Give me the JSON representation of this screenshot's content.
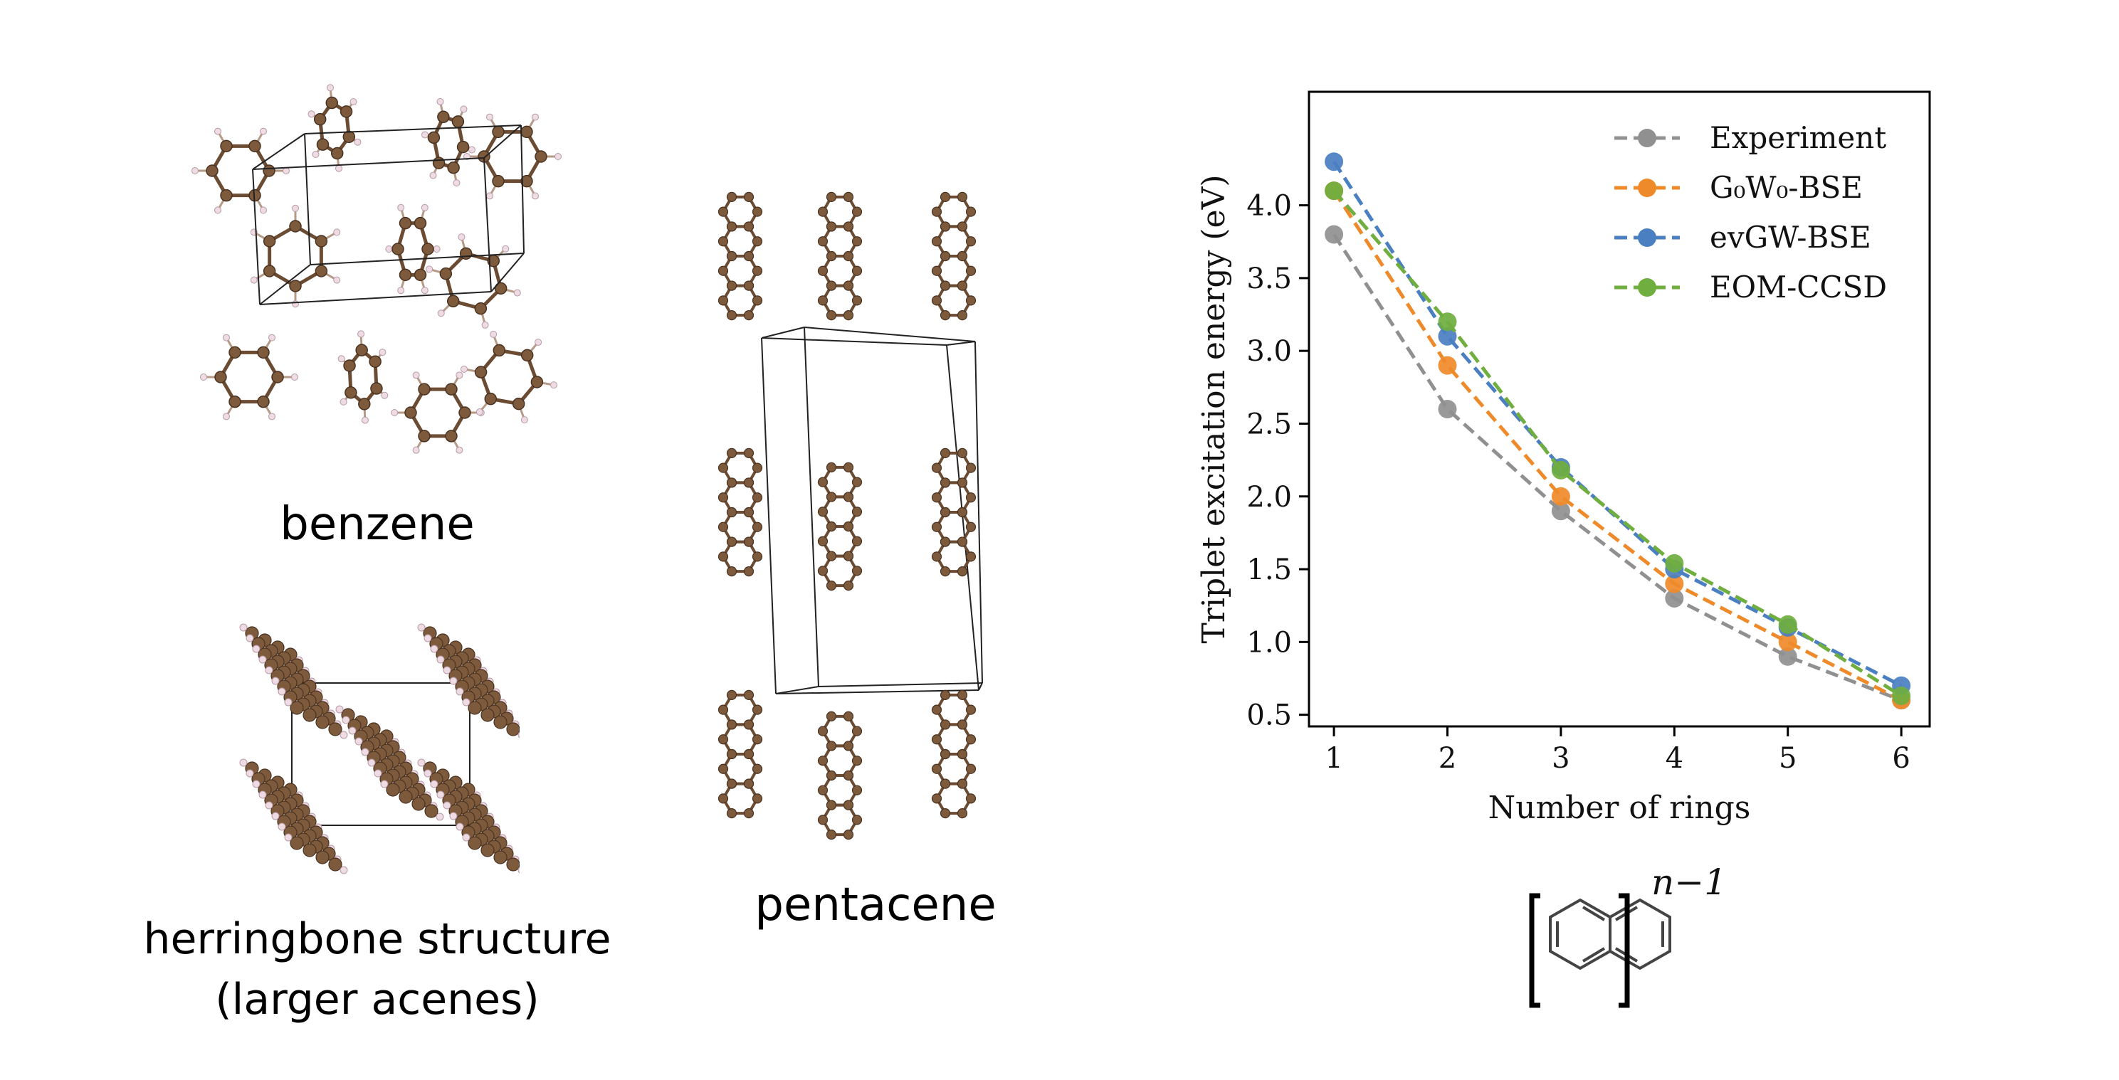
{
  "captions": {
    "benzene": "benzene",
    "herringbone_line1": "herringbone structure",
    "herringbone_line2": "(larger acenes)",
    "pentacene": "pentacene"
  },
  "formula": {
    "exponent": "n−1"
  },
  "chart_data": {
    "type": "line",
    "title": "",
    "xlabel": "Number of rings",
    "ylabel": "Triplet excitation energy (eV)",
    "x": [
      1,
      2,
      3,
      4,
      5,
      6
    ],
    "xticks": [
      "1",
      "2",
      "3",
      "4",
      "5",
      "6"
    ],
    "yticks": [
      "0.5",
      "1.0",
      "1.5",
      "2.0",
      "2.5",
      "3.0",
      "3.5",
      "4.0"
    ],
    "xlim": [
      0.78,
      6.25
    ],
    "ylim": [
      0.42,
      4.78
    ],
    "grid": false,
    "legend_position": "top-right",
    "series": [
      {
        "name": "Experiment",
        "color": "#909090",
        "values": [
          3.8,
          2.6,
          1.9,
          1.3,
          0.9,
          0.6
        ]
      },
      {
        "name": "G₀W₀-BSE",
        "color": "#ef8a2a",
        "values": [
          4.1,
          2.9,
          2.0,
          1.4,
          1.0,
          0.6
        ]
      },
      {
        "name": "evGW-BSE",
        "color": "#4a7fc1",
        "values": [
          4.3,
          3.1,
          2.2,
          1.5,
          1.1,
          0.7
        ]
      },
      {
        "name": "EOM-CCSD",
        "color": "#6fae3f",
        "values": [
          4.1,
          3.2,
          2.18,
          1.54,
          1.12,
          0.63
        ]
      }
    ]
  }
}
